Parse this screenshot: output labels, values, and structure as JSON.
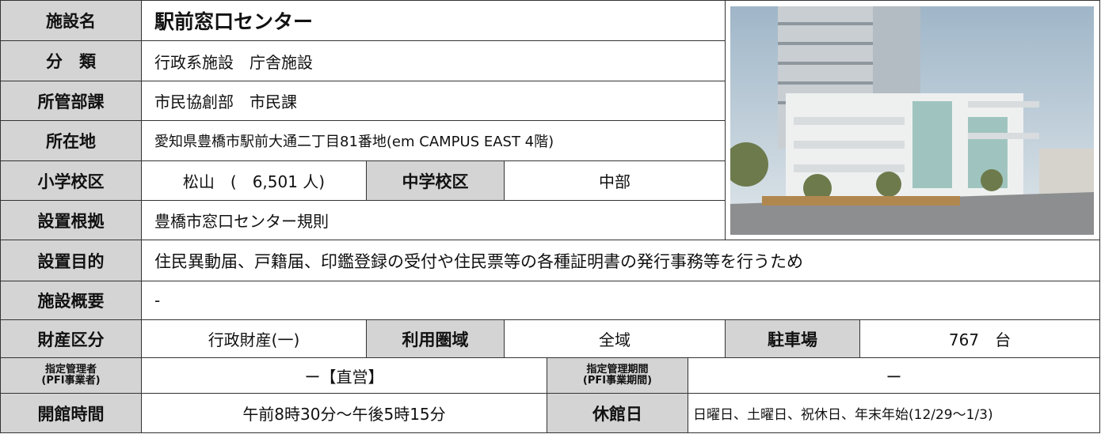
{
  "facility": {
    "name_label": "施設名",
    "name": "駅前窓口センター",
    "category_label": "分　類",
    "category": "行政系施設　庁舎施設",
    "department_label": "所管部課",
    "department": "市民協創部　市民課",
    "address_label": "所在地",
    "address": "愛知県豊橋市駅前大通二丁目81番地(em CAMPUS EAST 4階)",
    "elementary_label": "小学校区",
    "elementary": "松山　(　6,501 人)",
    "junior_label": "中学校区",
    "junior": "中部",
    "basis_label": "設置根拠",
    "basis": "豊橋市窓口センター規則",
    "purpose_label": "設置目的",
    "purpose": "住民異動届、戸籍届、印鑑登録の受付や住民票等の各種証明書の発行事務等を行うため",
    "overview_label": "施設概要",
    "overview": "-",
    "property_label": "財産区分",
    "property": "行政財産(一)",
    "area_label": "利用圏域",
    "area": "全域",
    "parking_label": "駐車場",
    "parking": "767　台",
    "manager_label": [
      "指定管理者",
      "(PFI事業者)"
    ],
    "manager": "ー【直営】",
    "period_label": [
      "指定管理期間",
      "(PFI事業期間)"
    ],
    "period": "ー",
    "hours_label": "開館時間",
    "hours": "午前8時30分～午後5時15分",
    "closed_label": "休館日",
    "closed": "日曜日、土曜日、祝休日、年末年始(12/29～1/3)"
  }
}
